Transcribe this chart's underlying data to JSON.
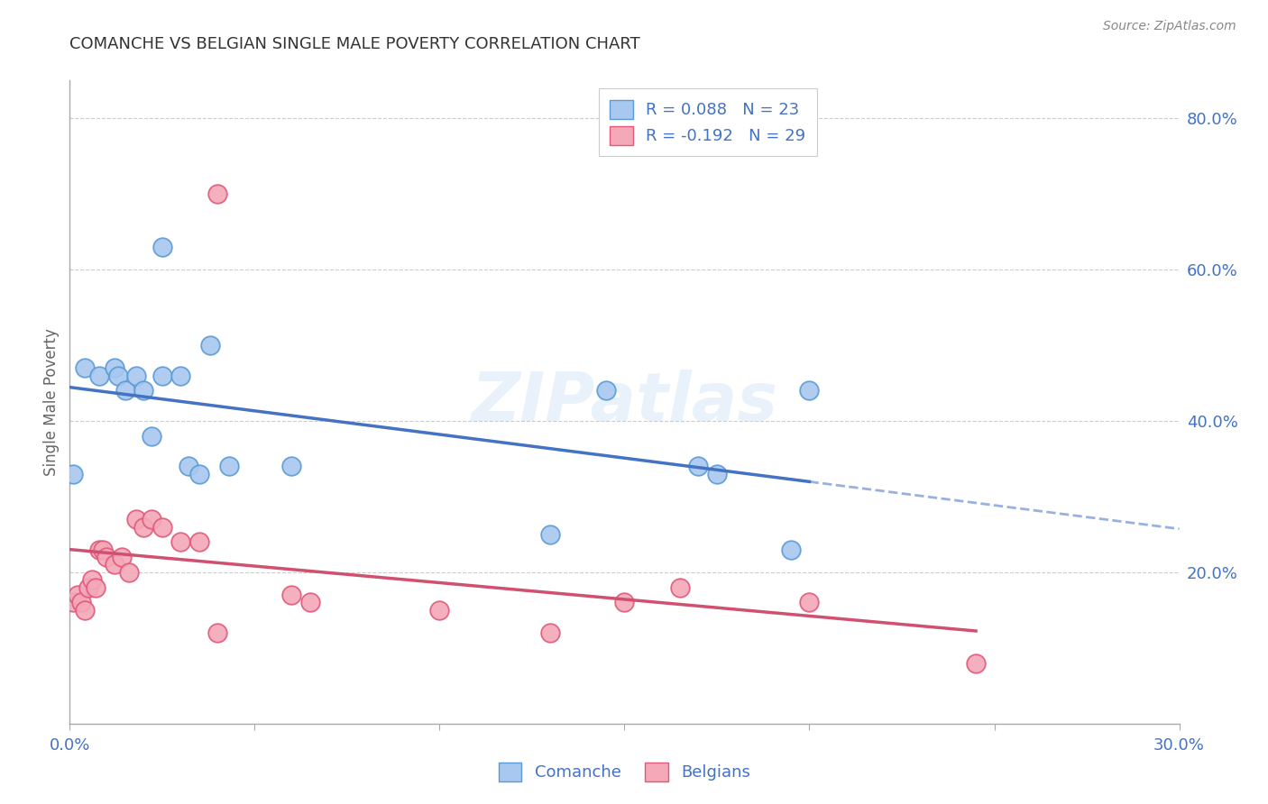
{
  "title": "COMANCHE VS BELGIAN SINGLE MALE POVERTY CORRELATION CHART",
  "source": "Source: ZipAtlas.com",
  "ylabel": "Single Male Poverty",
  "watermark": "ZIPatlas",
  "xlim": [
    0.0,
    0.3
  ],
  "ylim": [
    0.0,
    0.85
  ],
  "yticks_right": [
    0.2,
    0.4,
    0.6,
    0.8
  ],
  "ytick_labels_right": [
    "20.0%",
    "40.0%",
    "60.0%",
    "80.0%"
  ],
  "comanche_color": "#a8c8f0",
  "belgians_color": "#f4a8b8",
  "comanche_edge_color": "#5b9bd5",
  "belgians_edge_color": "#e05a7a",
  "comanche_line_color": "#4472c4",
  "belgians_line_color": "#d05070",
  "legend_r_comanche": "0.088",
  "legend_n_comanche": "23",
  "legend_r_belgians": "-0.192",
  "legend_n_belgians": "29",
  "comanche_x": [
    0.001,
    0.004,
    0.008,
    0.012,
    0.013,
    0.015,
    0.018,
    0.02,
    0.022,
    0.025,
    0.025,
    0.03,
    0.032,
    0.035,
    0.038,
    0.043,
    0.06,
    0.13,
    0.145,
    0.17,
    0.175,
    0.195,
    0.2
  ],
  "comanche_y": [
    0.33,
    0.47,
    0.46,
    0.47,
    0.46,
    0.44,
    0.46,
    0.44,
    0.38,
    0.63,
    0.46,
    0.46,
    0.34,
    0.33,
    0.5,
    0.34,
    0.34,
    0.25,
    0.44,
    0.34,
    0.33,
    0.23,
    0.44
  ],
  "belgians_x": [
    0.001,
    0.002,
    0.003,
    0.004,
    0.005,
    0.006,
    0.007,
    0.008,
    0.009,
    0.01,
    0.012,
    0.014,
    0.016,
    0.018,
    0.02,
    0.022,
    0.025,
    0.03,
    0.035,
    0.04,
    0.04,
    0.06,
    0.065,
    0.1,
    0.13,
    0.15,
    0.165,
    0.2,
    0.245
  ],
  "belgians_y": [
    0.16,
    0.17,
    0.16,
    0.15,
    0.18,
    0.19,
    0.18,
    0.23,
    0.23,
    0.22,
    0.21,
    0.22,
    0.2,
    0.27,
    0.26,
    0.27,
    0.26,
    0.24,
    0.24,
    0.12,
    0.7,
    0.17,
    0.16,
    0.15,
    0.12,
    0.16,
    0.18,
    0.16,
    0.08
  ],
  "background_color": "#ffffff",
  "grid_color": "#cccccc",
  "axis_color": "#aaaaaa",
  "tick_label_color": "#4472c4",
  "title_color": "#333333",
  "source_color": "#888888"
}
